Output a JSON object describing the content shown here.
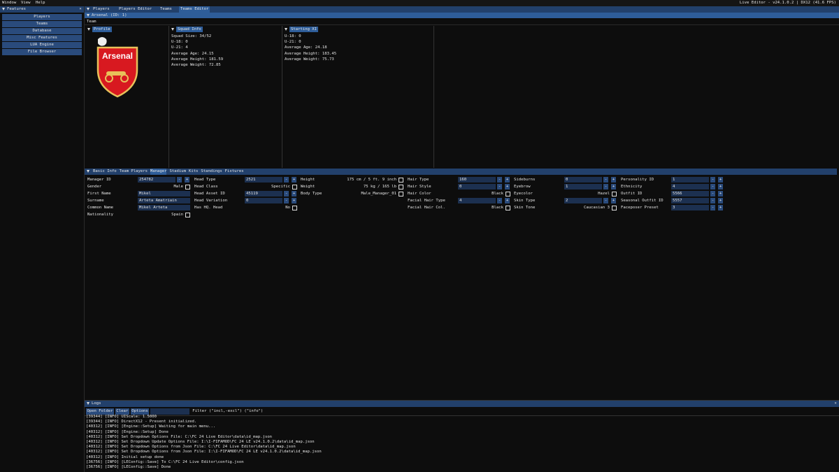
{
  "menu": [
    "Window",
    "View",
    "Help"
  ],
  "app_title": "Live Editor - v24.1.0.2 | DX12 (41.6 FPS)",
  "sidebar": {
    "title": "Features",
    "buttons": [
      "Players",
      "Teams",
      "Database",
      "Misc Features",
      "LUA Engine",
      "File Browser"
    ]
  },
  "tabs": {
    "items": [
      "Players",
      "Players Editor",
      "Teams",
      "Teams Editor"
    ],
    "active": 3
  },
  "window_title": "Arsenal (ID: 1)",
  "section": "Team",
  "profile": {
    "title": "Profile",
    "logo_text": "Arsenal"
  },
  "squad_info": {
    "title": "Squad Info",
    "lines": [
      "Squad Size: 34/52",
      "U-18: 0",
      "U-21: 4",
      "Average Age: 24.15",
      "Average Height: 181.59",
      "Average Weight: 72.85"
    ]
  },
  "starting_xi": {
    "title": "Starting XI",
    "lines": [
      "U-18: 0",
      "U-21: 0",
      "Average Age: 24.18",
      "Average Height: 183.45",
      "Average Weight: 75.73"
    ]
  },
  "subtabs": {
    "items": [
      "Basic Info",
      "Team Players",
      "Manager",
      "Stadium",
      "Kits",
      "Standings",
      "Fixtures"
    ],
    "active": 2
  },
  "manager": {
    "columns": [
      [
        {
          "label": "Manager ID",
          "value": "254782",
          "kind": "spin"
        },
        {
          "label": "Gender",
          "value": "Male",
          "kind": "edit"
        },
        {
          "label": "First Name",
          "value": "Mikel",
          "kind": "input"
        },
        {
          "label": "Surname",
          "value": "Arteta Amatriain",
          "kind": "input"
        },
        {
          "label": "Common Name",
          "value": "Mikel Arteta",
          "kind": "input"
        },
        {
          "label": "Nationality",
          "value": "Spain",
          "kind": "edit"
        }
      ],
      [
        {
          "label": "Head Type",
          "value": "2521",
          "kind": "spin"
        },
        {
          "label": "Head Class",
          "value": "Specific",
          "kind": "edit"
        },
        {
          "label": "Head Asset ID",
          "value": "45119",
          "kind": "spin"
        },
        {
          "label": "Head Variation",
          "value": "0",
          "kind": "spin"
        },
        {
          "label": "Has HQ. Head",
          "value": "No",
          "kind": "edit"
        }
      ],
      [
        {
          "label": "Height",
          "value": "175 cm / 5 ft. 9 inch",
          "kind": "edit"
        },
        {
          "label": "Weight",
          "value": "75 kg / 165 lb",
          "kind": "edit"
        },
        {
          "label": "Body Type",
          "value": "Male_Manager_01",
          "kind": "edit"
        }
      ],
      [
        {
          "label": "Hair Type",
          "value": "160",
          "kind": "spin"
        },
        {
          "label": "Hair Style",
          "value": "0",
          "kind": "spin"
        },
        {
          "label": "Hair Color",
          "value": "Black",
          "kind": "edit"
        },
        {
          "label": "Facial Hair Type",
          "value": "4",
          "kind": "spin"
        },
        {
          "label": "Facial Hair Col.",
          "value": "Black",
          "kind": "edit"
        }
      ],
      [
        {
          "label": "Sideburns",
          "value": "0",
          "kind": "spin"
        },
        {
          "label": "Eyebrow",
          "value": "1",
          "kind": "spin"
        },
        {
          "label": "Eyecolor",
          "value": "Hazel",
          "kind": "edit"
        },
        {
          "label": "Skin Type",
          "value": "2",
          "kind": "spin"
        },
        {
          "label": "Skin Tone",
          "value": "Caucasian 3",
          "kind": "edit"
        }
      ],
      [
        {
          "label": "Personality ID",
          "value": "1",
          "kind": "spin"
        },
        {
          "label": "Ethnicity",
          "value": "4",
          "kind": "spin"
        },
        {
          "label": "Outfit ID",
          "value": "5566",
          "kind": "spin"
        },
        {
          "label": "Seasonal Outfit ID",
          "value": "5557",
          "kind": "spin"
        },
        {
          "label": "Faceposer Preset",
          "value": "3",
          "kind": "spin"
        }
      ]
    ]
  },
  "logs": {
    "title": "Logs",
    "buttons": [
      "Open Folder",
      "Clear",
      "Options"
    ],
    "filter_label": "Filter (\"incl,-excl\") (\"info\")",
    "lines": [
      "[39344] [INFO] UIScale: 1.5000",
      "[39344] [INFO] DirectX12 - Present initialized.",
      "[40312] [INFO] [Engine::Setup] Waiting for main menu...",
      "[40312] [INFO] [Engine::Setup] Done",
      "[40312] [INFO] Set Dropdown Options File: C:\\FC 24 Live Editor\\data\\id_map.json",
      "[40312] [INFO] Set Dropdown Update Options File: I:\\I-FIFAMOD\\FC 24 LE v24.1.0.2\\data\\id_map.json",
      "[40312] [INFO] Set Dropdown Options from Json File: C:\\FC 24 Live Editor\\data\\id_map.json",
      "[40312] [INFO] Set Dropdown Options from Json File: I:\\I-FIFAMOD\\FC 24 LE v24.1.0.2\\data\\id_map.json",
      "[40312] [INFO] Initial setup done",
      "[36756] [INFO] [LEConfig::Save] To C:\\FC 24 Live Editor\\config.json",
      "[36756] [INFO] [LEConfig::Save] Done"
    ]
  }
}
